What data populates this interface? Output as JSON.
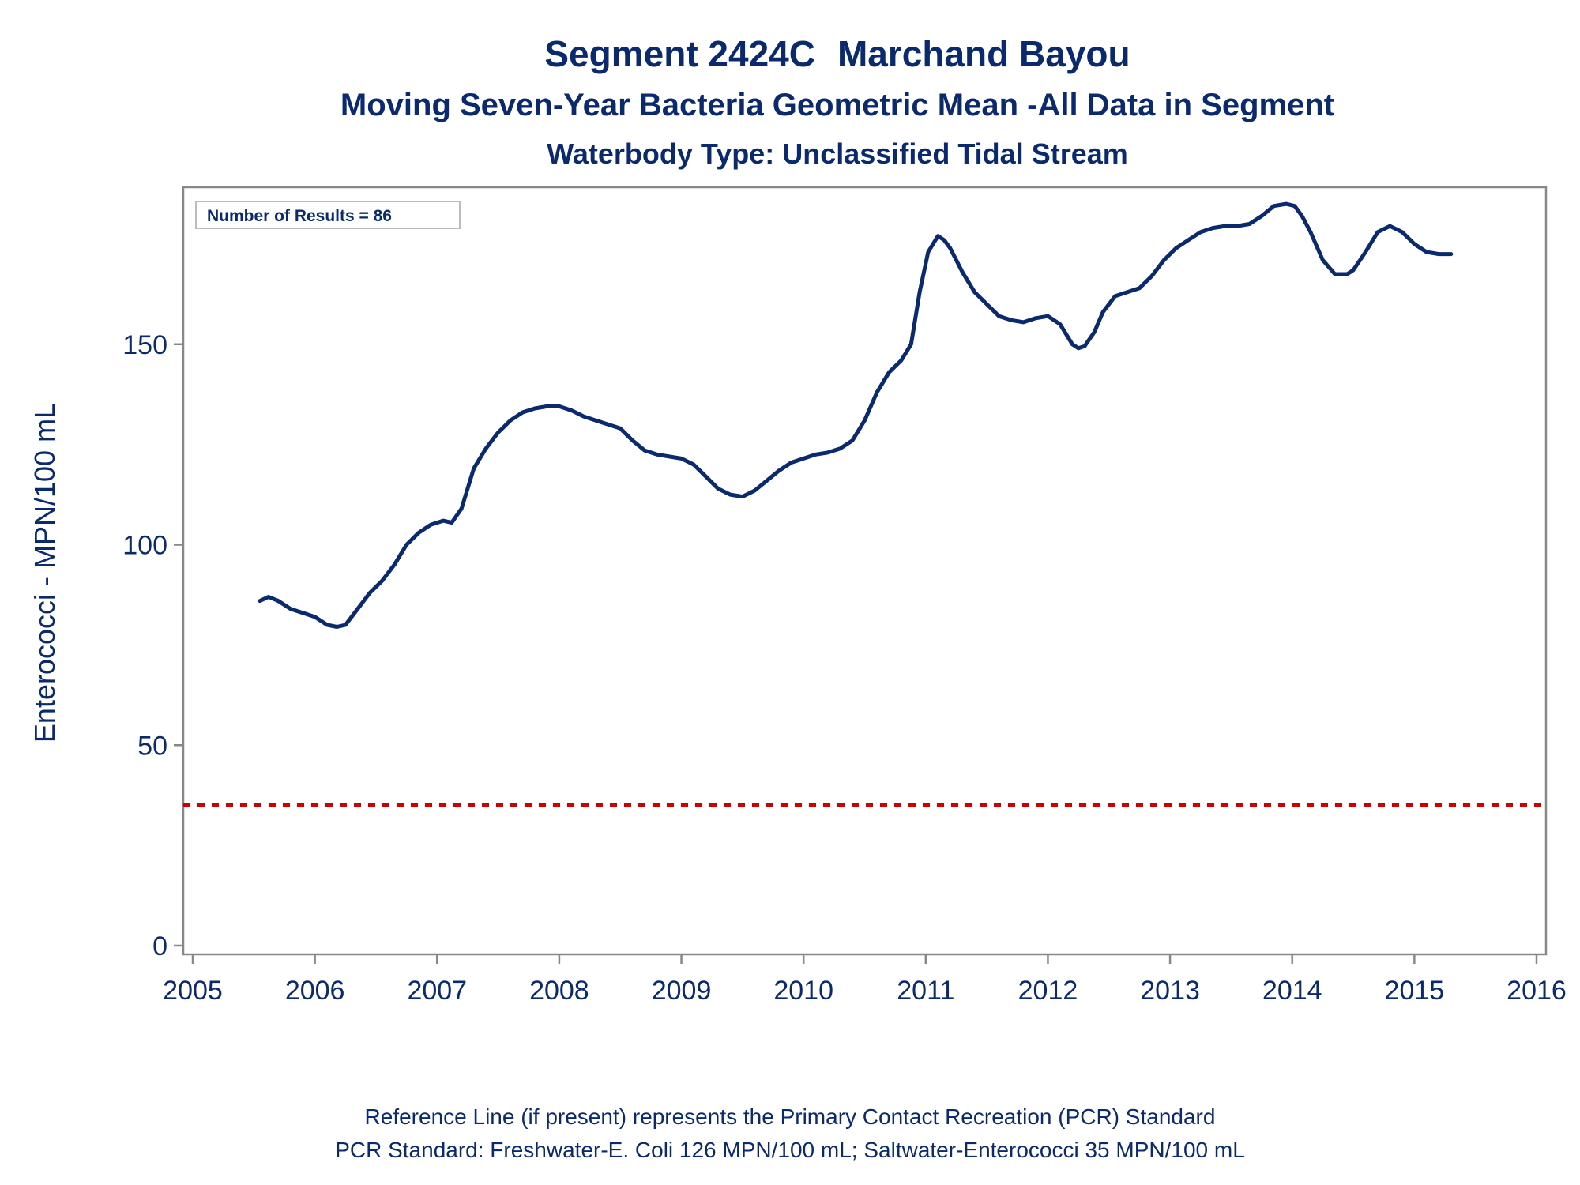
{
  "title": {
    "segment": "Segment 2424C",
    "waterbody_name": "Marchand Bayou",
    "subtitle": "Moving Seven-Year Bacteria Geometric Mean -All Data in Segment",
    "waterbody_type": "Waterbody Type: Unclassified Tidal Stream"
  },
  "inset_label": "Number of Results = 86",
  "footnotes": {
    "line1": "Reference Line (if present) represents the Primary Contact Recreation (PCR) Standard",
    "line2": "PCR Standard: Freshwater-E. Coli 126 MPN/100 mL; Saltwater-Enterococci 35 MPN/100 mL"
  },
  "colors": {
    "series": "#0b2a6e",
    "reference_line": "#cc0000",
    "axis": "#888888",
    "text": "#0b2a6e"
  },
  "chart_data": {
    "type": "line",
    "ylabel": "Enterococci - MPN/100 mL",
    "xlabel": "",
    "xlim": [
      2005,
      2016
    ],
    "ylim": [
      0,
      187
    ],
    "x_ticks": [
      2005,
      2006,
      2007,
      2008,
      2009,
      2010,
      2011,
      2012,
      2013,
      2014,
      2015,
      2016
    ],
    "y_ticks": [
      0,
      50,
      100,
      150
    ],
    "grid": false,
    "reference_line": {
      "y": 35,
      "style": "dashed"
    },
    "series": [
      {
        "x": [
          2005.55,
          2005.62,
          2005.7,
          2005.8,
          2005.9,
          2006.0,
          2006.1,
          2006.18,
          2006.25,
          2006.35,
          2006.45,
          2006.55,
          2006.65,
          2006.75,
          2006.85,
          2006.95,
          2007.05,
          2007.12,
          2007.2,
          2007.3,
          2007.4,
          2007.5,
          2007.6,
          2007.7,
          2007.8,
          2007.9,
          2008.0,
          2008.1,
          2008.2,
          2008.3,
          2008.4,
          2008.5,
          2008.6,
          2008.7,
          2008.8,
          2008.9,
          2009.0,
          2009.1,
          2009.2,
          2009.3,
          2009.4,
          2009.5,
          2009.6,
          2009.7,
          2009.8,
          2009.9,
          2010.0,
          2010.1,
          2010.2,
          2010.3,
          2010.4,
          2010.5,
          2010.6,
          2010.7,
          2010.8,
          2010.88,
          2010.95,
          2011.02,
          2011.1,
          2011.15,
          2011.2,
          2011.3,
          2011.4,
          2011.5,
          2011.6,
          2011.7,
          2011.8,
          2011.9,
          2012.0,
          2012.1,
          2012.2,
          2012.25,
          2012.3,
          2012.38,
          2012.45,
          2012.55,
          2012.65,
          2012.75,
          2012.85,
          2012.95,
          2013.05,
          2013.15,
          2013.25,
          2013.35,
          2013.45,
          2013.55,
          2013.65,
          2013.75,
          2013.85,
          2013.95,
          2014.02,
          2014.08,
          2014.15,
          2014.25,
          2014.35,
          2014.45,
          2014.5,
          2014.6,
          2014.7,
          2014.8,
          2014.9,
          2015.0,
          2015.1,
          2015.2,
          2015.3
        ],
        "values": [
          86,
          87,
          86,
          84,
          83,
          82,
          80,
          79.5,
          80,
          84,
          88,
          91,
          95,
          100,
          103,
          105,
          106,
          105.5,
          109,
          119,
          124,
          128,
          131,
          133,
          134,
          134.5,
          134.5,
          133.5,
          132,
          131,
          130,
          129,
          126,
          123.5,
          122.5,
          122,
          121.5,
          120,
          117,
          114,
          112.5,
          112,
          113.5,
          116,
          118.5,
          120.5,
          121.5,
          122.5,
          123,
          124,
          126,
          131,
          138,
          143,
          146,
          150,
          163,
          173,
          177,
          176,
          174,
          168,
          163,
          160,
          157,
          156,
          155.5,
          156.5,
          157,
          155,
          150,
          149,
          149.5,
          153,
          158,
          162,
          163,
          164,
          167,
          171,
          174,
          176,
          178,
          179,
          179.5,
          179.5,
          180,
          182,
          184.5,
          185,
          184.5,
          182,
          178,
          171,
          167.5,
          167.5,
          168.5,
          173,
          178,
          179.5,
          178,
          175,
          173,
          172.5,
          172.5
        ]
      }
    ]
  }
}
